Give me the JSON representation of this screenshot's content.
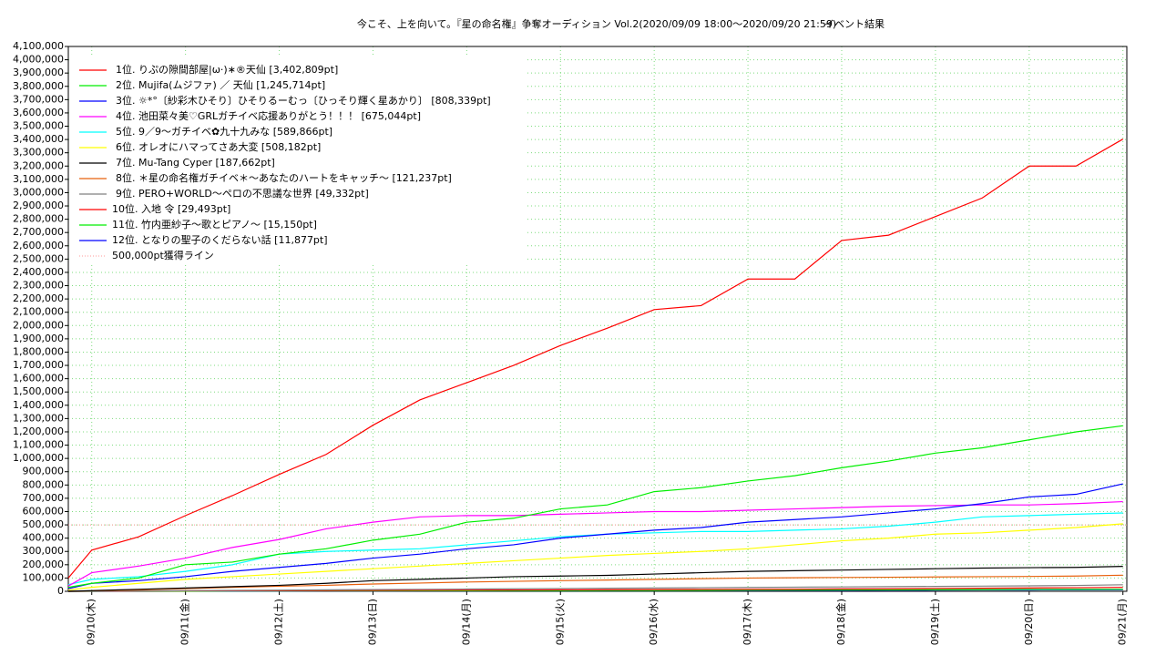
{
  "chart_data": {
    "type": "line",
    "title": "今こそ、上を向いて。『星の命名権』争奪オーディション Vol.2(2020/09/09 18:00〜2020/09/20 21:59)",
    "subtitle": "イベント結果",
    "x": [
      -6,
      0,
      12,
      24,
      36,
      48,
      60,
      72,
      84,
      96,
      108,
      120,
      132,
      144,
      156,
      168,
      180,
      192,
      204,
      216,
      228,
      240,
      252,
      264
    ],
    "xlim": [
      -6,
      265
    ],
    "xticks": [
      {
        "value": 0,
        "label": "09/10(木)"
      },
      {
        "value": 24,
        "label": "09/11(金)"
      },
      {
        "value": 48,
        "label": "09/12(土)"
      },
      {
        "value": 72,
        "label": "09/13(日)"
      },
      {
        "value": 96,
        "label": "09/14(月)"
      },
      {
        "value": 120,
        "label": "09/15(火)"
      },
      {
        "value": 144,
        "label": "09/16(水)"
      },
      {
        "value": 168,
        "label": "09/17(木)"
      },
      {
        "value": 192,
        "label": "09/18(金)"
      },
      {
        "value": 216,
        "label": "09/19(土)"
      },
      {
        "value": 240,
        "label": "09/20(日)"
      },
      {
        "value": 264,
        "label": "09/21(月)"
      }
    ],
    "ylim": [
      0,
      4100000
    ],
    "yticks": [
      0,
      {
        "value": 100000,
        "label": "100,000"
      },
      {
        "value": 200000,
        "label": "200,000"
      },
      {
        "value": 300000,
        "label": "300,000"
      },
      {
        "value": 400000,
        "label": "400,000"
      },
      {
        "value": 500000,
        "label": "500,000"
      },
      {
        "value": 600000,
        "label": "600,000"
      },
      {
        "value": 700000,
        "label": "700,000"
      },
      {
        "value": 800000,
        "label": "800,000"
      },
      {
        "value": 900000,
        "label": "900,000"
      },
      {
        "value": 1000000,
        "label": "1,000,000"
      },
      {
        "value": 1100000,
        "label": "1,100,000"
      },
      {
        "value": 1200000,
        "label": "1,200,000"
      },
      {
        "value": 1300000,
        "label": "1,300,000"
      },
      {
        "value": 1400000,
        "label": "1,400,000"
      },
      {
        "value": 1500000,
        "label": "1,500,000"
      },
      {
        "value": 1600000,
        "label": "1,600,000"
      },
      {
        "value": 1700000,
        "label": "1,700,000"
      },
      {
        "value": 1800000,
        "label": "1,800,000"
      },
      {
        "value": 1900000,
        "label": "1,900,000"
      },
      {
        "value": 2000000,
        "label": "2,000,000"
      },
      {
        "value": 2100000,
        "label": "2,100,000"
      },
      {
        "value": 2200000,
        "label": "2,200,000"
      },
      {
        "value": 2300000,
        "label": "2,300,000"
      },
      {
        "value": 2400000,
        "label": "2,400,000"
      },
      {
        "value": 2500000,
        "label": "2,500,000"
      },
      {
        "value": 2600000,
        "label": "2,600,000"
      },
      {
        "value": 2700000,
        "label": "2,700,000"
      },
      {
        "value": 2800000,
        "label": "2,800,000"
      },
      {
        "value": 2900000,
        "label": "2,900,000"
      },
      {
        "value": 3000000,
        "label": "3,000,000"
      },
      {
        "value": 3100000,
        "label": "3,100,000"
      },
      {
        "value": 3200000,
        "label": "3,200,000"
      },
      {
        "value": 3300000,
        "label": "3,300,000"
      },
      {
        "value": 3400000,
        "label": "3,400,000"
      },
      {
        "value": 3500000,
        "label": "3,500,000"
      },
      {
        "value": 3600000,
        "label": "3,600,000"
      },
      {
        "value": 3700000,
        "label": "3,700,000"
      },
      {
        "value": 3800000,
        "label": "3,800,000"
      },
      {
        "value": 3900000,
        "label": "3,900,000"
      },
      {
        "value": 4000000,
        "label": "4,000,000"
      },
      {
        "value": 4100000,
        "label": "4,100,000"
      }
    ],
    "grid": true,
    "legend": "upper-left",
    "series": [
      {
        "name": "1位. りぷの隙間部屋|ω·)∗®天仙 [3,402,809pt]",
        "color": "#ff0000",
        "values": [
          100000,
          310000,
          410000,
          570000,
          720000,
          880000,
          1030000,
          1250000,
          1440000,
          1570000,
          1700000,
          1850000,
          1980000,
          2120000,
          2150000,
          2350000,
          2350000,
          2640000,
          2680000,
          2820000,
          2960000,
          3200000,
          3200000,
          3402809
        ]
      },
      {
        "name": "2位. Mujifa(ムジファ) ／ 天仙 [1,245,714pt]",
        "color": "#00ee00",
        "values": [
          30000,
          60000,
          100000,
          200000,
          220000,
          280000,
          320000,
          385000,
          430000,
          520000,
          550000,
          620000,
          650000,
          750000,
          780000,
          830000,
          870000,
          930000,
          980000,
          1040000,
          1080000,
          1140000,
          1200000,
          1245714
        ]
      },
      {
        "name": "3位. ☼*°〔紗彩木ひそり〕ひそりるーむっ〔ひっそり輝く星あかり〕 [808,339pt]",
        "color": "#0000ff",
        "values": [
          20000,
          60000,
          80000,
          110000,
          150000,
          180000,
          210000,
          250000,
          280000,
          320000,
          350000,
          400000,
          430000,
          460000,
          480000,
          520000,
          540000,
          560000,
          590000,
          620000,
          660000,
          710000,
          730000,
          808339
        ]
      },
      {
        "name": "4位. 池田菜々美♡GRLガチイベ応援ありがとう！！！ [675,044pt]",
        "color": "#ff00ff",
        "values": [
          40000,
          140000,
          190000,
          250000,
          330000,
          390000,
          470000,
          520000,
          560000,
          570000,
          570000,
          580000,
          590000,
          600000,
          600000,
          610000,
          620000,
          630000,
          640000,
          645000,
          650000,
          650000,
          660000,
          675044
        ]
      },
      {
        "name": "5位. 9／9〜ガチイベ✿九十九みな [589,866pt]",
        "color": "#00ffff",
        "values": [
          50000,
          90000,
          110000,
          150000,
          200000,
          280000,
          300000,
          310000,
          320000,
          350000,
          380000,
          410000,
          430000,
          440000,
          450000,
          450000,
          460000,
          470000,
          490000,
          520000,
          560000,
          570000,
          580000,
          589866
        ]
      },
      {
        "name": "6位. オレオにハマってさあ大変 [508,182pt]",
        "color": "#ffff00",
        "values": [
          10000,
          30000,
          60000,
          90000,
          110000,
          130000,
          150000,
          170000,
          190000,
          210000,
          230000,
          250000,
          270000,
          285000,
          300000,
          320000,
          350000,
          380000,
          400000,
          430000,
          440000,
          460000,
          480000,
          508182
        ]
      },
      {
        "name": "7位. Mu-Tang Cyper [187,662pt]",
        "color": "#000000",
        "values": [
          0,
          5000,
          15000,
          25000,
          35000,
          45000,
          60000,
          80000,
          90000,
          100000,
          110000,
          115000,
          120000,
          130000,
          140000,
          150000,
          155000,
          160000,
          165000,
          170000,
          175000,
          178000,
          180000,
          187662
        ]
      },
      {
        "name": "8位. ＊星の命名権ガチイベ＊〜あなたのハートをキャッチ〜 [121,237pt]",
        "color": "#e8600c",
        "values": [
          0,
          3000,
          10000,
          20000,
          30000,
          38000,
          45000,
          55000,
          62000,
          70000,
          75000,
          80000,
          85000,
          90000,
          95000,
          100000,
          102000,
          104000,
          106000,
          108000,
          110000,
          112000,
          115000,
          121237
        ]
      },
      {
        "name": "9位. PERO+WORLD〜ペロの不思議な世界 [49,332pt]",
        "color": "#808080",
        "values": [
          0,
          1000,
          3000,
          5000,
          7000,
          9000,
          11000,
          13000,
          15000,
          17000,
          19000,
          21000,
          23000,
          25000,
          27000,
          29000,
          31000,
          33000,
          35000,
          37000,
          39000,
          41000,
          44000,
          49332
        ]
      },
      {
        "name": "10位. 入地 令 [29,493pt]",
        "color": "#ff0000",
        "values": [
          0,
          1000,
          2000,
          3000,
          4000,
          5000,
          6000,
          7000,
          8000,
          9000,
          10000,
          11000,
          12000,
          13000,
          14000,
          15000,
          16000,
          18000,
          19000,
          21000,
          23000,
          25000,
          27000,
          29493
        ]
      },
      {
        "name": "11位. 竹内亜紗子〜歌とピアノ〜 [15,150pt]",
        "color": "#00ee00",
        "values": [
          0,
          0,
          1000,
          1000,
          2000,
          2000,
          3000,
          3000,
          4000,
          4000,
          5000,
          5000,
          6000,
          6000,
          7000,
          8000,
          9000,
          10000,
          11000,
          12000,
          13000,
          14000,
          14500,
          15150
        ]
      },
      {
        "name": "12位. となりの聖子のくだらない話 [11,877pt]",
        "color": "#0000ff",
        "values": [
          0,
          0,
          0,
          1000,
          1000,
          1000,
          2000,
          2000,
          3000,
          3000,
          4000,
          4000,
          5000,
          5000,
          6000,
          6000,
          7000,
          7000,
          8000,
          9000,
          10000,
          10500,
          11000,
          11877
        ]
      }
    ],
    "reference_lines": [
      {
        "name": "500,000pt獲得ライン",
        "value": 500000,
        "color": "#ff9999"
      }
    ]
  }
}
